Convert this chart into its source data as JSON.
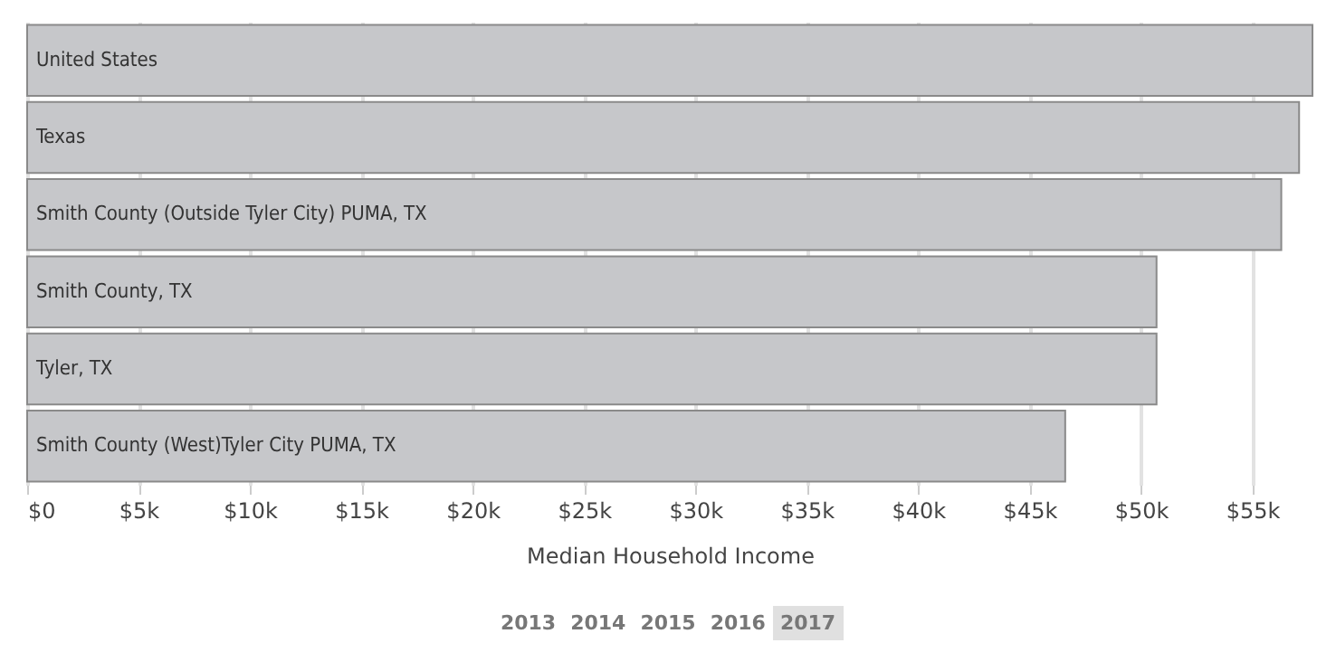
{
  "chart_data": {
    "type": "bar",
    "orientation": "horizontal",
    "xlabel": "Median Household Income",
    "categories": [
      "United States",
      "Texas",
      "Smith County (Outside Tyler City) PUMA, TX",
      "Smith County, TX",
      "Tyler, TX",
      "Smith County (West)Tyler City PUMA, TX"
    ],
    "values": [
      57700,
      57100,
      56300,
      50700,
      50700,
      46600
    ],
    "color": "#c6c7ca",
    "xlim": [
      0,
      57700
    ],
    "xticks": [
      {
        "value": 0,
        "label": "$0"
      },
      {
        "value": 5000,
        "label": "$5k"
      },
      {
        "value": 10000,
        "label": "$10k"
      },
      {
        "value": 15000,
        "label": "$15k"
      },
      {
        "value": 20000,
        "label": "$20k"
      },
      {
        "value": 25000,
        "label": "$25k"
      },
      {
        "value": 30000,
        "label": "$30k"
      },
      {
        "value": 35000,
        "label": "$35k"
      },
      {
        "value": 40000,
        "label": "$40k"
      },
      {
        "value": 45000,
        "label": "$45k"
      },
      {
        "value": 50000,
        "label": "$50k"
      },
      {
        "value": 55000,
        "label": "$55k"
      }
    ],
    "grid": "x",
    "annotations": [
      "2013",
      "2014",
      "2015",
      "2016",
      "2017"
    ]
  }
}
